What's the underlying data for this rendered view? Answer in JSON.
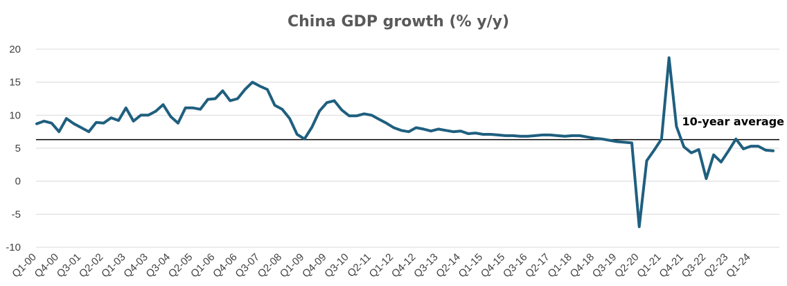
{
  "chart_data": {
    "type": "line",
    "title": "China GDP growth (% y/y)",
    "xlabel": "",
    "ylabel": "",
    "ylim": [
      -10,
      20
    ],
    "yticks": [
      20,
      15,
      10,
      5,
      0,
      -5,
      -10
    ],
    "ytick_labels": [
      "20",
      "15",
      "10",
      "5",
      "0",
      "-5",
      "-10"
    ],
    "grid": true,
    "x_tick_labels": [
      "Q1-00",
      "Q4-00",
      "Q3-01",
      "Q2-02",
      "Q1-03",
      "Q4-03",
      "Q3-04",
      "Q2-05",
      "Q1-06",
      "Q4-06",
      "Q3-07",
      "Q2-08",
      "Q1-09",
      "Q4-09",
      "Q3-10",
      "Q2-11",
      "Q1-12",
      "Q4-12",
      "Q3-13",
      "Q2-14",
      "Q1-15",
      "Q4-15",
      "Q3-16",
      "Q2-17",
      "Q1-18",
      "Q4-18",
      "Q3-19",
      "Q2-20",
      "Q1-21",
      "Q4-21",
      "Q3-22",
      "Q2-23",
      "Q1-24"
    ],
    "series": [
      {
        "name": "China GDP growth",
        "color": "#1f5f7f",
        "values": [
          8.7,
          9.1,
          8.8,
          7.5,
          9.5,
          8.7,
          8.1,
          7.5,
          8.9,
          8.8,
          9.6,
          9.2,
          11.1,
          9.1,
          10.0,
          10.0,
          10.6,
          11.6,
          9.8,
          8.8,
          11.1,
          11.1,
          10.9,
          12.4,
          12.5,
          13.7,
          12.2,
          12.5,
          13.9,
          15.0,
          14.4,
          13.9,
          11.5,
          10.9,
          9.5,
          7.1,
          6.4,
          8.2,
          10.6,
          11.9,
          12.2,
          10.8,
          9.9,
          9.9,
          10.2,
          10.0,
          9.4,
          8.8,
          8.1,
          7.7,
          7.5,
          8.1,
          7.9,
          7.6,
          7.9,
          7.7,
          7.5,
          7.6,
          7.2,
          7.3,
          7.1,
          7.1,
          7.0,
          6.9,
          6.9,
          6.8,
          6.8,
          6.9,
          7.0,
          7.0,
          6.9,
          6.8,
          6.9,
          6.9,
          6.7,
          6.5,
          6.4,
          6.2,
          6.0,
          5.9,
          5.8,
          -6.9,
          3.1,
          4.7,
          6.4,
          18.7,
          8.3,
          5.2,
          4.3,
          4.8,
          0.4,
          4.0,
          2.9,
          4.6,
          6.4,
          4.9,
          5.3,
          5.3,
          4.7,
          4.6
        ]
      }
    ],
    "reference_lines": [
      {
        "name": "10-year average",
        "value": 6.3,
        "color": "#000000",
        "label": "10-year average"
      }
    ]
  }
}
